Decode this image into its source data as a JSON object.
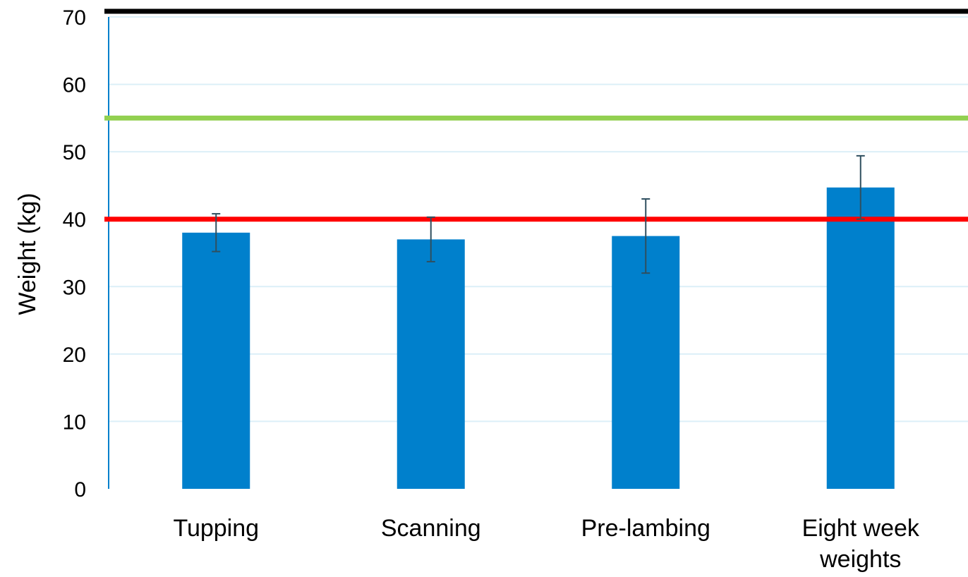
{
  "chart_data": {
    "type": "bar",
    "title": "",
    "xlabel": "",
    "ylabel": "Weight (kg)",
    "ylim": [
      0,
      70
    ],
    "yticks": [
      "0",
      "10",
      "20",
      "30",
      "40",
      "50",
      "60",
      "70"
    ],
    "grid": true,
    "categories": [
      [
        "Tupping"
      ],
      [
        "Scanning"
      ],
      [
        "Pre-lambing"
      ],
      [
        "Eight week",
        "weights"
      ]
    ],
    "series": [
      {
        "values": [
          38,
          37,
          37.5,
          44.7
        ],
        "errors": [
          2.8,
          3.3,
          5.5,
          4.7
        ],
        "color": "#0080CC"
      }
    ],
    "reference_lines": [
      {
        "value": 70,
        "color": "#000000"
      },
      {
        "value": 55,
        "color": "#92D050"
      },
      {
        "value": 40,
        "color": "#FF0000"
      }
    ],
    "colors": {
      "bar": "#0080CC",
      "grid": "#DCEFF8",
      "axis": "#0080CC",
      "error_bar": "#2F4F5F"
    }
  }
}
